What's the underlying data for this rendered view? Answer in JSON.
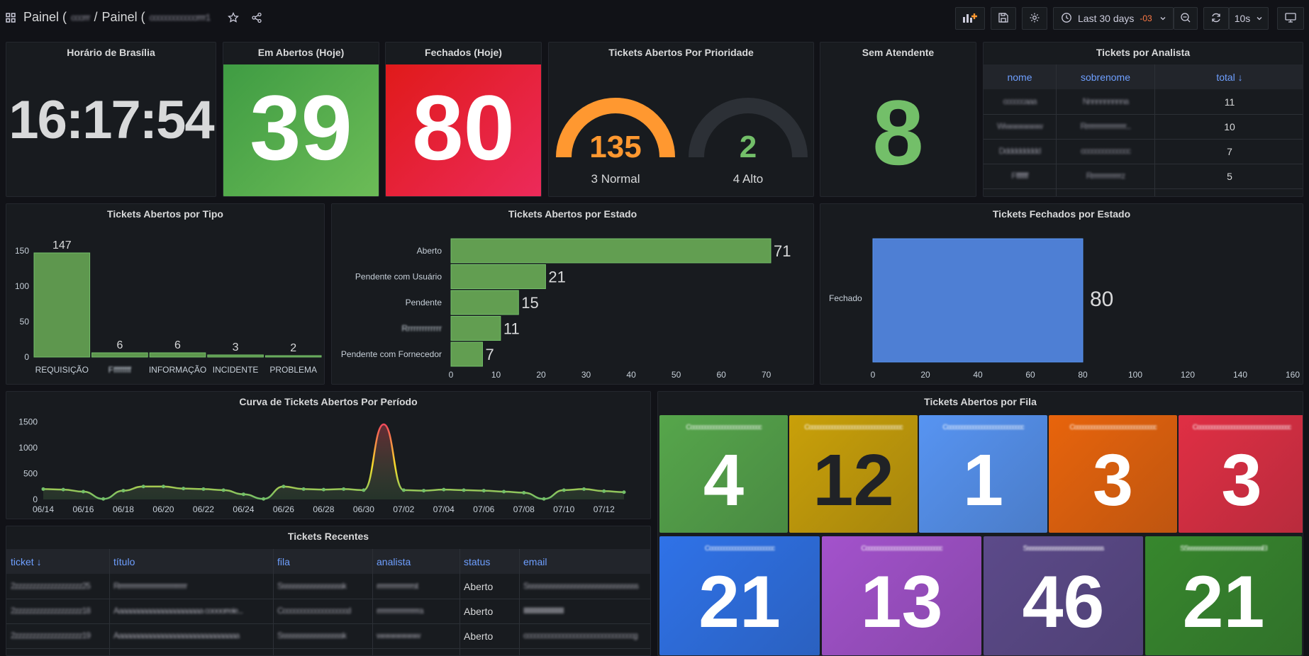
{
  "header": {
    "breadcrumb_part1": "Painel (",
    "separator": "/",
    "breadcrumb_part2": "Painel (",
    "time_range": "Last 30 days",
    "timezone": "-03",
    "refresh_interval": "10s"
  },
  "clock": {
    "title": "Horário de Brasília",
    "time": "16:17:54"
  },
  "open_today": {
    "title": "Em Abertos (Hoje)",
    "value": "39"
  },
  "closed_today": {
    "title": "Fechados (Hoje)",
    "value": "80"
  },
  "priority": {
    "title": "Tickets Abertos Por Prioridade",
    "gauges": [
      {
        "value": "135",
        "label": "3 Normal",
        "color": "#ff9830",
        "fill": 1.0
      },
      {
        "value": "2",
        "label": "4 Alto",
        "color": "#73bf69",
        "fill": 0.0
      }
    ]
  },
  "no_agent": {
    "title": "Sem Atendente",
    "value": "8"
  },
  "analyst_table": {
    "title": "Tickets por Analista",
    "headers": [
      "nome",
      "sobrenome",
      "total ↓"
    ],
    "rows": [
      {
        "nome": "ccccccaaa",
        "sobrenome": "Nnnnnnnnnna",
        "total": "11"
      },
      {
        "nome": "Wwwwwwww",
        "sobrenome": "Rrrrrrrrrrrrrrrrrrrr...",
        "total": "10"
      },
      {
        "nome": "Dddddddddd",
        "sobrenome": "cccccccccccccc",
        "total": "7"
      },
      {
        "nome": "Fffffffff",
        "sobrenome": "Rrrrrrrrrrrrrrrz",
        "total": "5"
      }
    ]
  },
  "by_type": {
    "title": "Tickets Abertos por Tipo",
    "chart_data": {
      "type": "bar",
      "categories": [
        "REQUISIÇÃO",
        "Fffffffff",
        "INFORMAÇÃO",
        "INCIDENTE",
        "PROBLEMA"
      ],
      "values": [
        147,
        6,
        6,
        3,
        2
      ],
      "ylim": [
        0,
        150
      ],
      "yticks": [
        0,
        50,
        100,
        150
      ],
      "color": "#629e51"
    }
  },
  "by_state_open": {
    "title": "Tickets Abertos por Estado",
    "chart_data": {
      "type": "bar",
      "orientation": "horizontal",
      "categories": [
        "Aberto",
        "Pendente com Usuário",
        "Pendente",
        "Rrrrrrrrrrrrr",
        "Pendente com Fornecedor"
      ],
      "values": [
        71,
        21,
        15,
        11,
        7
      ],
      "xlim": [
        0,
        71
      ],
      "xticks": [
        0,
        10,
        20,
        30,
        40,
        50,
        60,
        70
      ],
      "color": "#629e51"
    }
  },
  "by_state_closed": {
    "title": "Tickets Fechados por Estado",
    "chart_data": {
      "type": "bar",
      "orientation": "horizontal",
      "categories": [
        "Fechado"
      ],
      "values": [
        80
      ],
      "xlim": [
        0,
        160
      ],
      "xticks": [
        "0",
        "20",
        "40",
        "60",
        "80",
        "100",
        "120",
        "140",
        "160"
      ],
      "color": "#4e7fd4"
    }
  },
  "curve": {
    "title": "Curva de Tickets Abertos Por Período",
    "chart_data": {
      "type": "line",
      "x": [
        "06/14",
        "06/15",
        "06/16",
        "06/17",
        "06/18",
        "06/19",
        "06/20",
        "06/21",
        "06/22",
        "06/23",
        "06/24",
        "06/25",
        "06/26",
        "06/27",
        "06/28",
        "06/29",
        "06/30",
        "07/01",
        "07/02",
        "07/03",
        "07/04",
        "07/05",
        "07/06",
        "07/07",
        "07/08",
        "07/09",
        "07/10",
        "07/11",
        "07/12",
        "07/13"
      ],
      "y": [
        200,
        190,
        150,
        10,
        170,
        250,
        250,
        210,
        200,
        180,
        100,
        10,
        250,
        200,
        190,
        200,
        180,
        1450,
        180,
        170,
        190,
        180,
        170,
        150,
        130,
        10,
        180,
        200,
        160,
        140
      ],
      "xticks": [
        "06/14",
        "06/16",
        "06/18",
        "06/20",
        "06/22",
        "06/24",
        "06/26",
        "06/28",
        "06/30",
        "07/02",
        "07/04",
        "07/06",
        "07/08",
        "07/10",
        "07/12"
      ],
      "yticks": [
        0,
        500,
        1000,
        1500
      ],
      "ylim": [
        0,
        1600
      ]
    }
  },
  "recent": {
    "title": "Tickets Recentes",
    "headers": [
      "ticket ↓",
      "título",
      "fila",
      "analista",
      "status",
      "email"
    ],
    "rows": [
      [
        "2zzzzzzzzzzzzzzzzzzz25",
        "Rrrrrrrrrrrrrrrrrrrrrrrrrrrrrrrrr",
        "Ssssssssssssssssssk",
        "rrrrrrrrrrrrrrrrrst",
        "Aberto",
        "Ssssssssssssssssssssssssssssssss"
      ],
      [
        "2zzzzzzzzzzzzzzzzzzz18",
        "Aaaaaaaaaaaaaaaaaaaaaa coooorreie...",
        "Cccccccccccccccccccd",
        "rrrrrrrrrrrrrrrrrrrra",
        "Aberto",
        "llllllllllllllllllllllllllllllllll"
      ],
      [
        "2zzzzzzzzzzzzzzzzzzz19",
        "Aaaaaaaaaaaaaaaaaaaaaaaaaaaaaaa",
        "Ssssssssssssssssssk",
        "wwwwwwww",
        "Aberto",
        "cccccccccccccccccccccccccccccccg"
      ]
    ]
  },
  "queues": {
    "title": "Tickets Abertos por Fila",
    "tiles": [
      {
        "name": "Cccccccccccccccccccccccccc",
        "value": "4",
        "color": "#56a64b",
        "text": "#ffffff"
      },
      {
        "name": "Cccccccccccccccccccccccccccccccccc",
        "value": "12",
        "color": "#c9a009",
        "text": "#202226"
      },
      {
        "name": "Cccccccccccccccccccccccccccc",
        "value": "1",
        "color": "#5794f2",
        "text": "#ffffff"
      },
      {
        "name": "Cccccccccccccccccccccccccccccc",
        "value": "3",
        "color": "#e8640c",
        "text": "#ffffff"
      },
      {
        "name": "Cccccccccccccccccccccccccccccccccc",
        "value": "3",
        "color": "#e02f44",
        "text": "#ffffff"
      },
      {
        "name": "Cccccccccccccccccccccccc",
        "value": "21",
        "color": "#2f72e8",
        "text": "#ffffff"
      },
      {
        "name": "Cccccccccccccccccccccccccccc",
        "value": "13",
        "color": "#a352cc",
        "text": "#ffffff"
      },
      {
        "name": "Ssssssssssssssssssssssssssss",
        "value": "46",
        "color": "#5c4a8a",
        "text": "#ffffff"
      },
      {
        "name": "SSssssssssssssssssssssssssssEI",
        "value": "21",
        "color": "#37872d",
        "text": "#ffffff"
      }
    ]
  }
}
